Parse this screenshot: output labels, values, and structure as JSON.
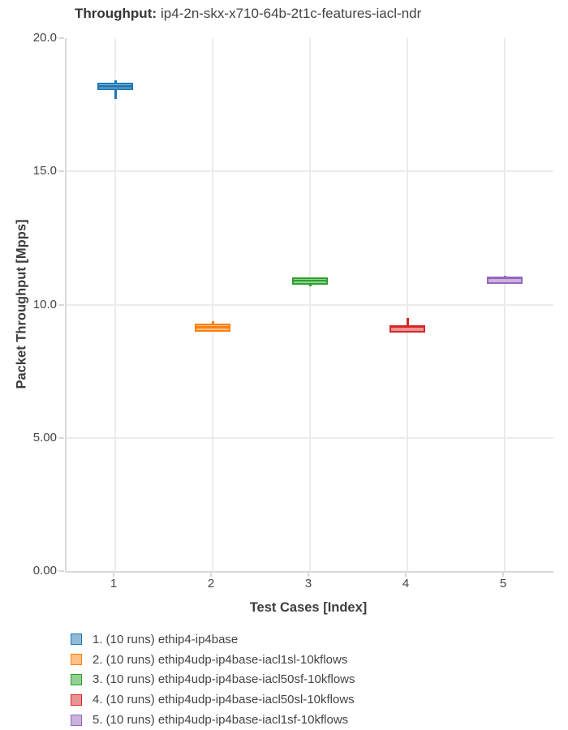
{
  "title": {
    "prefix": "Throughput:",
    "suffix": "ip4-2n-skx-x710-64b-2t1c-features-iacl-ndr"
  },
  "chart_data": {
    "type": "box",
    "title": "Throughput: ip4-2n-skx-x710-64b-2t1c-features-iacl-ndr",
    "xlabel": "Test Cases [Index]",
    "ylabel": "Packet Throughput [Mpps]",
    "ylim": [
      0,
      20
    ],
    "grid": true,
    "legend_position": "bottom-left",
    "yticks": [
      {
        "value": 0,
        "label": "0.00"
      },
      {
        "value": 5,
        "label": "5.00"
      },
      {
        "value": 10,
        "label": "10.0"
      },
      {
        "value": 15,
        "label": "15.0"
      },
      {
        "value": 20,
        "label": "20.0"
      }
    ],
    "categories": [
      "1",
      "2",
      "3",
      "4",
      "5"
    ],
    "series": [
      {
        "index": 1,
        "legend": "1. (10 runs) ethip4-ip4base",
        "color": "#1f77b4",
        "fill": "#8fbbd9",
        "whisker_low": 17.72,
        "q1": 18.05,
        "median": 18.2,
        "q3": 18.33,
        "whisker_high": 18.43
      },
      {
        "index": 2,
        "legend": "2. (10 runs) ethip4udp-ip4base-iacl1sl-10kflows",
        "color": "#ff7f0e",
        "fill": "#ffbf86",
        "whisker_low": 8.97,
        "q1": 8.98,
        "median": 9.16,
        "q3": 9.28,
        "whisker_high": 9.38
      },
      {
        "index": 3,
        "legend": "3. (10 runs) ethip4udp-ip4base-iacl50sf-10kflows",
        "color": "#2ca02c",
        "fill": "#95cf95",
        "whisker_low": 10.67,
        "q1": 10.75,
        "median": 10.9,
        "q3": 11.02,
        "whisker_high": 11.03
      },
      {
        "index": 4,
        "legend": "4. (10 runs) ethip4udp-ip4base-iacl50sl-10kflows",
        "color": "#d62728",
        "fill": "#ea9393",
        "whisker_low": 8.94,
        "q1": 8.95,
        "median": 9.19,
        "q3": 9.22,
        "whisker_high": 9.5
      },
      {
        "index": 5,
        "legend": "5. (10 runs) ethip4udp-ip4base-iacl1sf-10kflows",
        "color": "#9467bd",
        "fill": "#c9b3de",
        "whisker_low": 10.77,
        "q1": 10.78,
        "median": 11.0,
        "q3": 11.05,
        "whisker_high": 11.09
      }
    ]
  },
  "colors": {
    "background": "#ffffff",
    "text": "#444444",
    "grid": "#ececec",
    "axis": "#d9d9d9"
  }
}
